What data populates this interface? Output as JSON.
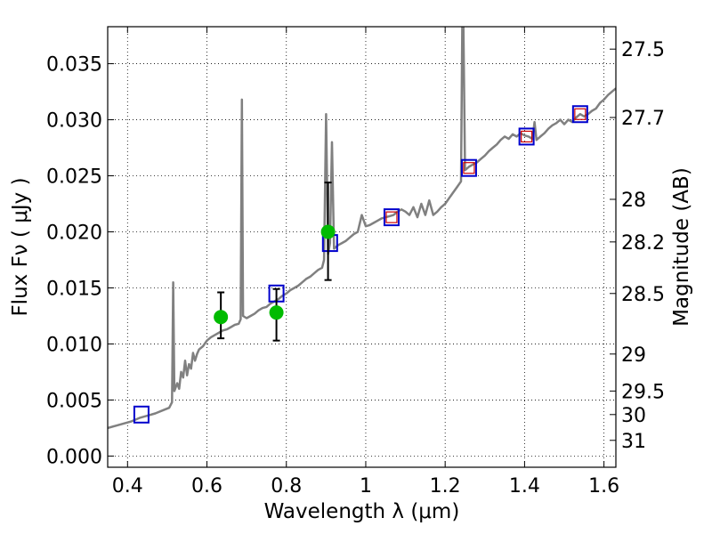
{
  "chart_data": {
    "type": "line",
    "xlabel": "Wavelength  λ (μm)",
    "ylabel": "Flux  Fν ( μJy )",
    "ylabel_right": "Magnitude (AB)",
    "xlim": [
      0.35,
      1.63
    ],
    "ylim": [
      -0.001,
      0.0383
    ],
    "grid": true,
    "x_ticks": [
      0.4,
      0.6,
      0.8,
      1.0,
      1.2,
      1.4,
      1.6
    ],
    "x_tick_labels": [
      "0.4",
      "0.6",
      "0.8",
      "1",
      "1.2",
      "1.4",
      "1.6"
    ],
    "y_ticks": [
      0.0,
      0.005,
      0.01,
      0.015,
      0.02,
      0.025,
      0.03,
      0.035
    ],
    "y_tick_labels": [
      "0.000",
      "0.005",
      "0.010",
      "0.015",
      "0.020",
      "0.025",
      "0.030",
      "0.035"
    ],
    "right_ticks": [
      {
        "label": "27.5",
        "flux": 0.0363
      },
      {
        "label": "27.7",
        "flux": 0.0302
      },
      {
        "label": "28",
        "flux": 0.0229
      },
      {
        "label": "28.2",
        "flux": 0.0191
      },
      {
        "label": "28.5",
        "flux": 0.0145
      },
      {
        "label": "29",
        "flux": 0.0091
      },
      {
        "label": "29.5",
        "flux": 0.0058
      },
      {
        "label": "30",
        "flux": 0.0037
      },
      {
        "label": "31",
        "flux": 0.0014
      }
    ],
    "series": [
      {
        "kind": "spectrum",
        "color": "#808080",
        "points": [
          [
            0.35,
            0.0025
          ],
          [
            0.37,
            0.0027
          ],
          [
            0.39,
            0.0029
          ],
          [
            0.41,
            0.0031
          ],
          [
            0.43,
            0.0034
          ],
          [
            0.45,
            0.0036
          ],
          [
            0.47,
            0.0038
          ],
          [
            0.49,
            0.0041
          ],
          [
            0.505,
            0.0043
          ],
          [
            0.512,
            0.0048
          ],
          [
            0.515,
            0.0155
          ],
          [
            0.518,
            0.0058
          ],
          [
            0.525,
            0.0065
          ],
          [
            0.53,
            0.006
          ],
          [
            0.535,
            0.0075
          ],
          [
            0.54,
            0.007
          ],
          [
            0.545,
            0.0085
          ],
          [
            0.55,
            0.0072
          ],
          [
            0.555,
            0.0082
          ],
          [
            0.56,
            0.0078
          ],
          [
            0.565,
            0.0092
          ],
          [
            0.57,
            0.0085
          ],
          [
            0.575,
            0.0091
          ],
          [
            0.58,
            0.0095
          ],
          [
            0.59,
            0.0098
          ],
          [
            0.6,
            0.0103
          ],
          [
            0.61,
            0.0106
          ],
          [
            0.62,
            0.0108
          ],
          [
            0.63,
            0.011
          ],
          [
            0.64,
            0.0112
          ],
          [
            0.65,
            0.0113
          ],
          [
            0.66,
            0.0115
          ],
          [
            0.67,
            0.0117
          ],
          [
            0.68,
            0.0118
          ],
          [
            0.685,
            0.0122
          ],
          [
            0.688,
            0.0318
          ],
          [
            0.691,
            0.0125
          ],
          [
            0.7,
            0.0123
          ],
          [
            0.71,
            0.0125
          ],
          [
            0.72,
            0.0127
          ],
          [
            0.73,
            0.013
          ],
          [
            0.74,
            0.0132
          ],
          [
            0.75,
            0.0133
          ],
          [
            0.76,
            0.0136
          ],
          [
            0.77,
            0.0138
          ],
          [
            0.78,
            0.014
          ],
          [
            0.79,
            0.0143
          ],
          [
            0.8,
            0.0145
          ],
          [
            0.81,
            0.0148
          ],
          [
            0.82,
            0.015
          ],
          [
            0.83,
            0.0152
          ],
          [
            0.84,
            0.0155
          ],
          [
            0.85,
            0.0158
          ],
          [
            0.86,
            0.016
          ],
          [
            0.87,
            0.0163
          ],
          [
            0.88,
            0.0166
          ],
          [
            0.89,
            0.0168
          ],
          [
            0.895,
            0.0175
          ],
          [
            0.9,
            0.0305
          ],
          [
            0.905,
            0.018
          ],
          [
            0.91,
            0.019
          ],
          [
            0.915,
            0.028
          ],
          [
            0.92,
            0.0185
          ],
          [
            0.93,
            0.0188
          ],
          [
            0.94,
            0.019
          ],
          [
            0.95,
            0.0192
          ],
          [
            0.96,
            0.0195
          ],
          [
            0.97,
            0.0198
          ],
          [
            0.98,
            0.02
          ],
          [
            0.99,
            0.0215
          ],
          [
            1.0,
            0.0205
          ],
          [
            1.01,
            0.0206
          ],
          [
            1.02,
            0.0208
          ],
          [
            1.03,
            0.021
          ],
          [
            1.04,
            0.0212
          ],
          [
            1.05,
            0.0213
          ],
          [
            1.06,
            0.0214
          ],
          [
            1.07,
            0.0215
          ],
          [
            1.08,
            0.0218
          ],
          [
            1.09,
            0.022
          ],
          [
            1.1,
            0.0218
          ],
          [
            1.11,
            0.0215
          ],
          [
            1.12,
            0.0222
          ],
          [
            1.13,
            0.0213
          ],
          [
            1.14,
            0.0225
          ],
          [
            1.15,
            0.0215
          ],
          [
            1.16,
            0.0228
          ],
          [
            1.17,
            0.0215
          ],
          [
            1.18,
            0.0218
          ],
          [
            1.19,
            0.0222
          ],
          [
            1.2,
            0.0225
          ],
          [
            1.21,
            0.023
          ],
          [
            1.22,
            0.0235
          ],
          [
            1.23,
            0.024
          ],
          [
            1.24,
            0.0245
          ],
          [
            1.243,
            0.0383
          ],
          [
            1.246,
            0.0383
          ],
          [
            1.25,
            0.0255
          ],
          [
            1.26,
            0.0258
          ],
          [
            1.27,
            0.026
          ],
          [
            1.28,
            0.0262
          ],
          [
            1.29,
            0.0265
          ],
          [
            1.3,
            0.0268
          ],
          [
            1.31,
            0.0272
          ],
          [
            1.32,
            0.0275
          ],
          [
            1.33,
            0.0278
          ],
          [
            1.34,
            0.0282
          ],
          [
            1.35,
            0.0285
          ],
          [
            1.36,
            0.0283
          ],
          [
            1.37,
            0.0287
          ],
          [
            1.38,
            0.0285
          ],
          [
            1.39,
            0.0288
          ],
          [
            1.4,
            0.0286
          ],
          [
            1.41,
            0.0285
          ],
          [
            1.42,
            0.0283
          ],
          [
            1.425,
            0.0298
          ],
          [
            1.43,
            0.0282
          ],
          [
            1.44,
            0.0285
          ],
          [
            1.45,
            0.0288
          ],
          [
            1.46,
            0.0292
          ],
          [
            1.47,
            0.0295
          ],
          [
            1.48,
            0.0297
          ],
          [
            1.49,
            0.03
          ],
          [
            1.5,
            0.0296
          ],
          [
            1.51,
            0.03
          ],
          [
            1.52,
            0.0298
          ],
          [
            1.53,
            0.0302
          ],
          [
            1.54,
            0.0305
          ],
          [
            1.55,
            0.0303
          ],
          [
            1.56,
            0.0305
          ],
          [
            1.57,
            0.0308
          ],
          [
            1.58,
            0.031
          ],
          [
            1.59,
            0.0315
          ],
          [
            1.6,
            0.0318
          ],
          [
            1.61,
            0.0322
          ],
          [
            1.62,
            0.0325
          ],
          [
            1.63,
            0.0328
          ]
        ]
      },
      {
        "kind": "model_photometry_blue",
        "color": "#0000cc",
        "points": [
          [
            0.435,
            0.0037
          ],
          [
            0.775,
            0.0145
          ],
          [
            0.91,
            0.019
          ],
          [
            1.065,
            0.0213
          ],
          [
            1.26,
            0.0257
          ],
          [
            1.405,
            0.0285
          ],
          [
            1.54,
            0.0305
          ]
        ]
      },
      {
        "kind": "model_photometry_red",
        "color": "#cc0000",
        "points": [
          [
            1.065,
            0.0213
          ],
          [
            1.26,
            0.0257
          ],
          [
            1.405,
            0.0285
          ],
          [
            1.54,
            0.0305
          ]
        ]
      },
      {
        "kind": "observed_photometry",
        "color": "#00bb00",
        "points": [
          {
            "x": 0.635,
            "y": 0.0124,
            "lo": 0.0105,
            "hi": 0.0146
          },
          {
            "x": 0.775,
            "y": 0.0128,
            "lo": 0.0103,
            "hi": 0.0149
          },
          {
            "x": 0.905,
            "y": 0.02,
            "lo": 0.0157,
            "hi": 0.0244
          }
        ]
      }
    ]
  }
}
